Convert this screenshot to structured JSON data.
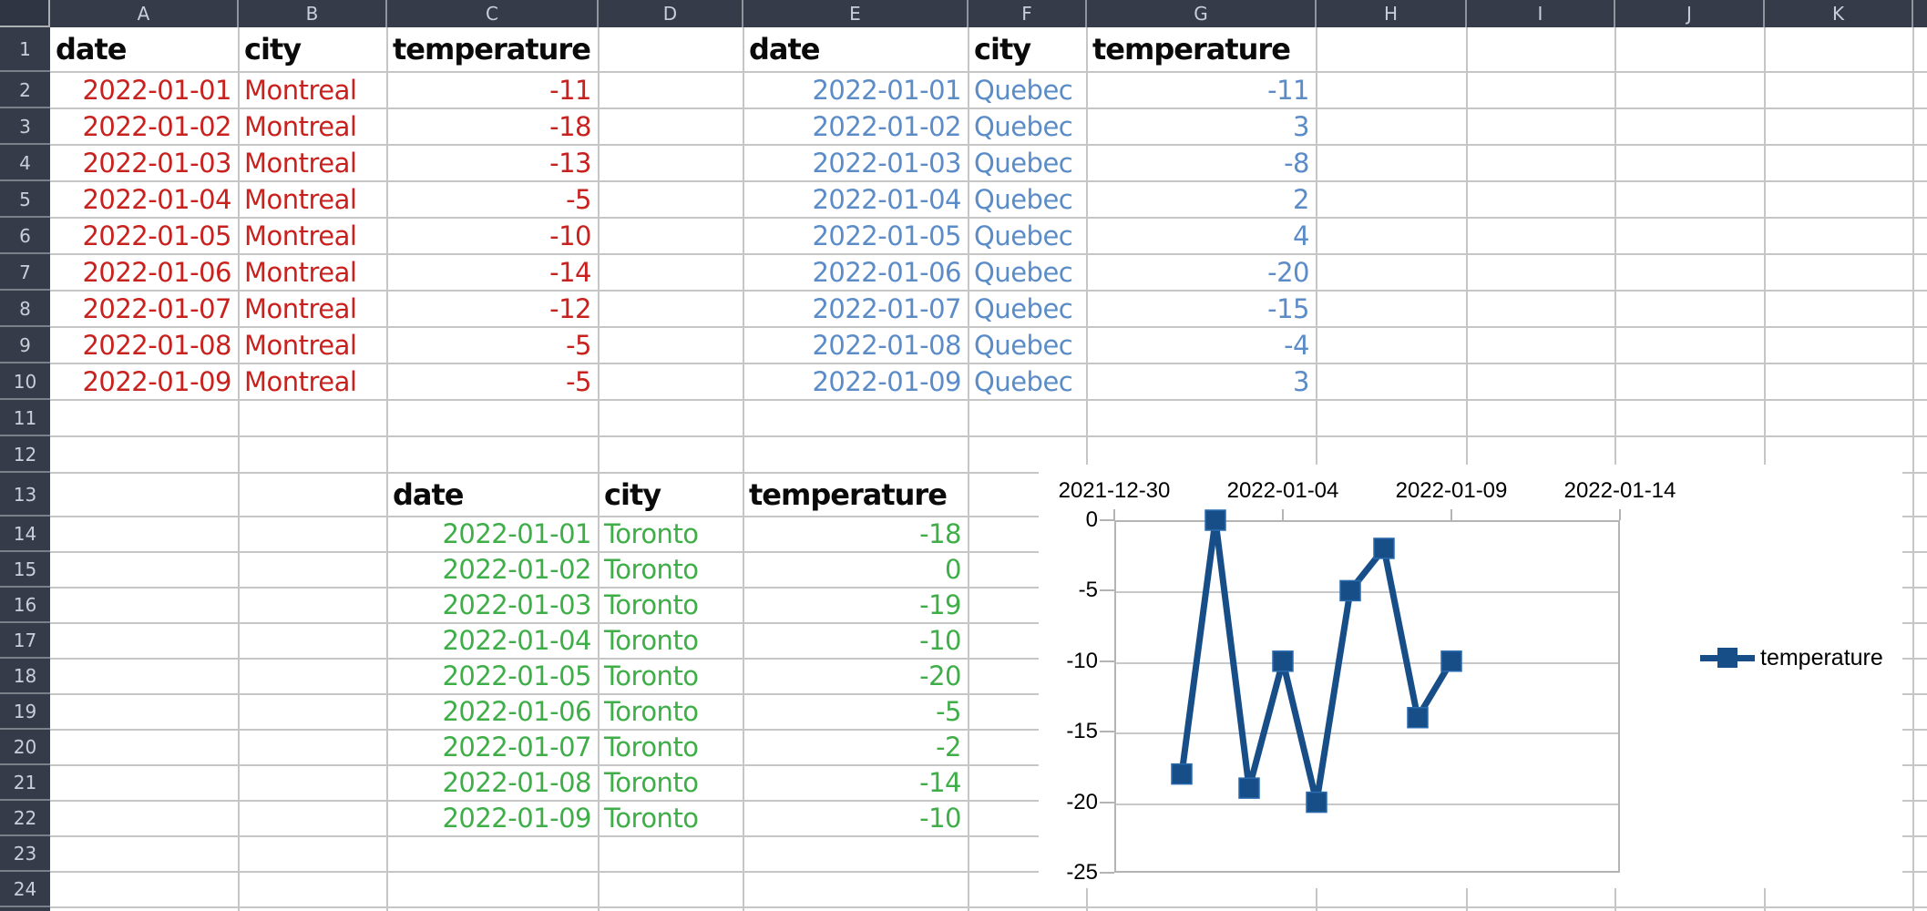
{
  "grid": {
    "column_letters": [
      "A",
      "B",
      "C",
      "D",
      "E",
      "F",
      "G",
      "H",
      "I",
      "J",
      "K"
    ],
    "row_numbers": [
      "1",
      "2",
      "3",
      "4",
      "5",
      "6",
      "7",
      "8",
      "9",
      "10",
      "11",
      "12",
      "13",
      "14",
      "15",
      "16",
      "17",
      "18",
      "19",
      "20",
      "21",
      "22",
      "23",
      "24"
    ]
  },
  "colors": {
    "montreal_text": "#c9211e",
    "quebec_text": "#5b8cc8",
    "toronto_text": "#3fae49",
    "header_text": "#0a0a0a",
    "chart_series": "#174e87"
  },
  "tables": [
    {
      "name": "montreal",
      "headers": [
        "date",
        "city",
        "temperature"
      ],
      "rows": [
        [
          "2022-01-01",
          "Montreal",
          "-11"
        ],
        [
          "2022-01-02",
          "Montreal",
          "-18"
        ],
        [
          "2022-01-03",
          "Montreal",
          "-13"
        ],
        [
          "2022-01-04",
          "Montreal",
          "-5"
        ],
        [
          "2022-01-05",
          "Montreal",
          "-10"
        ],
        [
          "2022-01-06",
          "Montreal",
          "-14"
        ],
        [
          "2022-01-07",
          "Montreal",
          "-12"
        ],
        [
          "2022-01-08",
          "Montreal",
          "-5"
        ],
        [
          "2022-01-09",
          "Montreal",
          "-5"
        ]
      ]
    },
    {
      "name": "quebec",
      "headers": [
        "date",
        "city",
        "temperature"
      ],
      "rows": [
        [
          "2022-01-01",
          "Quebec",
          "-11"
        ],
        [
          "2022-01-02",
          "Quebec",
          "3"
        ],
        [
          "2022-01-03",
          "Quebec",
          "-8"
        ],
        [
          "2022-01-04",
          "Quebec",
          "2"
        ],
        [
          "2022-01-05",
          "Quebec",
          "4"
        ],
        [
          "2022-01-06",
          "Quebec",
          "-20"
        ],
        [
          "2022-01-07",
          "Quebec",
          "-15"
        ],
        [
          "2022-01-08",
          "Quebec",
          "-4"
        ],
        [
          "2022-01-09",
          "Quebec",
          "3"
        ]
      ]
    },
    {
      "name": "toronto",
      "headers": [
        "date",
        "city",
        "temperature"
      ],
      "rows": [
        [
          "2022-01-01",
          "Toronto",
          "-18"
        ],
        [
          "2022-01-02",
          "Toronto",
          "0"
        ],
        [
          "2022-01-03",
          "Toronto",
          "-19"
        ],
        [
          "2022-01-04",
          "Toronto",
          "-10"
        ],
        [
          "2022-01-05",
          "Toronto",
          "-20"
        ],
        [
          "2022-01-06",
          "Toronto",
          "-5"
        ],
        [
          "2022-01-07",
          "Toronto",
          "-2"
        ],
        [
          "2022-01-08",
          "Toronto",
          "-14"
        ],
        [
          "2022-01-09",
          "Toronto",
          "-10"
        ]
      ]
    }
  ],
  "chart_data": {
    "type": "line",
    "title": "",
    "series": [
      {
        "name": "temperature",
        "color": "#174e87",
        "x": [
          "2022-01-01",
          "2022-01-02",
          "2022-01-03",
          "2022-01-04",
          "2022-01-05",
          "2022-01-06",
          "2022-01-07",
          "2022-01-08",
          "2022-01-09"
        ],
        "values": [
          -18,
          0,
          -19,
          -10,
          -20,
          -5,
          -2,
          -14,
          -10
        ]
      }
    ],
    "x_tick_labels": [
      "2021-12-30",
      "2022-01-04",
      "2022-01-09",
      "2022-01-14"
    ],
    "y_tick_labels": [
      "0",
      "-5",
      "-10",
      "-15",
      "-20",
      "-25"
    ],
    "ylim": [
      -25,
      0
    ],
    "xlim": [
      "2021-12-30",
      "2022-01-14"
    ],
    "grid": "horizontal",
    "legend": {
      "label": "temperature",
      "position": "right"
    }
  }
}
